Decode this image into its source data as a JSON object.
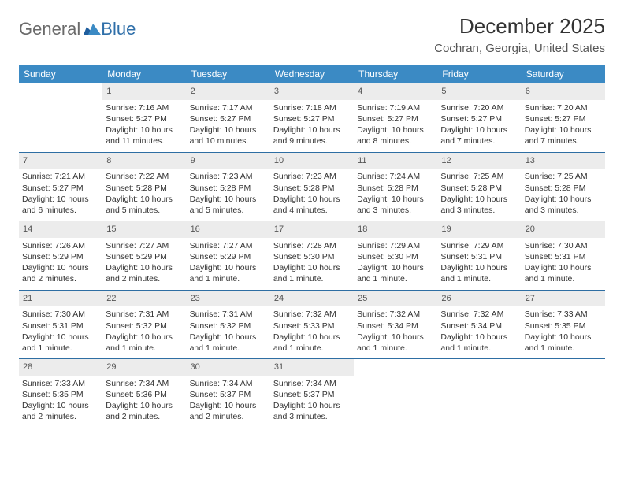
{
  "logo": {
    "word1": "General",
    "word2": "Blue"
  },
  "title": "December 2025",
  "location": "Cochran, Georgia, United States",
  "colors": {
    "header_bg": "#3b8ac4",
    "week_divider": "#2e6ea3",
    "daynum_bg": "#ececec",
    "text": "#333333",
    "logo_gray": "#6a6a6a",
    "logo_blue": "#2f6fa9"
  },
  "weekdays": [
    "Sunday",
    "Monday",
    "Tuesday",
    "Wednesday",
    "Thursday",
    "Friday",
    "Saturday"
  ],
  "weeks": [
    [
      {
        "blank": true
      },
      {
        "d": "1",
        "sr": "Sunrise: 7:16 AM",
        "ss": "Sunset: 5:27 PM",
        "dl1": "Daylight: 10 hours",
        "dl2": "and 11 minutes."
      },
      {
        "d": "2",
        "sr": "Sunrise: 7:17 AM",
        "ss": "Sunset: 5:27 PM",
        "dl1": "Daylight: 10 hours",
        "dl2": "and 10 minutes."
      },
      {
        "d": "3",
        "sr": "Sunrise: 7:18 AM",
        "ss": "Sunset: 5:27 PM",
        "dl1": "Daylight: 10 hours",
        "dl2": "and 9 minutes."
      },
      {
        "d": "4",
        "sr": "Sunrise: 7:19 AM",
        "ss": "Sunset: 5:27 PM",
        "dl1": "Daylight: 10 hours",
        "dl2": "and 8 minutes."
      },
      {
        "d": "5",
        "sr": "Sunrise: 7:20 AM",
        "ss": "Sunset: 5:27 PM",
        "dl1": "Daylight: 10 hours",
        "dl2": "and 7 minutes."
      },
      {
        "d": "6",
        "sr": "Sunrise: 7:20 AM",
        "ss": "Sunset: 5:27 PM",
        "dl1": "Daylight: 10 hours",
        "dl2": "and 7 minutes."
      }
    ],
    [
      {
        "d": "7",
        "sr": "Sunrise: 7:21 AM",
        "ss": "Sunset: 5:27 PM",
        "dl1": "Daylight: 10 hours",
        "dl2": "and 6 minutes."
      },
      {
        "d": "8",
        "sr": "Sunrise: 7:22 AM",
        "ss": "Sunset: 5:28 PM",
        "dl1": "Daylight: 10 hours",
        "dl2": "and 5 minutes."
      },
      {
        "d": "9",
        "sr": "Sunrise: 7:23 AM",
        "ss": "Sunset: 5:28 PM",
        "dl1": "Daylight: 10 hours",
        "dl2": "and 5 minutes."
      },
      {
        "d": "10",
        "sr": "Sunrise: 7:23 AM",
        "ss": "Sunset: 5:28 PM",
        "dl1": "Daylight: 10 hours",
        "dl2": "and 4 minutes."
      },
      {
        "d": "11",
        "sr": "Sunrise: 7:24 AM",
        "ss": "Sunset: 5:28 PM",
        "dl1": "Daylight: 10 hours",
        "dl2": "and 3 minutes."
      },
      {
        "d": "12",
        "sr": "Sunrise: 7:25 AM",
        "ss": "Sunset: 5:28 PM",
        "dl1": "Daylight: 10 hours",
        "dl2": "and 3 minutes."
      },
      {
        "d": "13",
        "sr": "Sunrise: 7:25 AM",
        "ss": "Sunset: 5:28 PM",
        "dl1": "Daylight: 10 hours",
        "dl2": "and 3 minutes."
      }
    ],
    [
      {
        "d": "14",
        "sr": "Sunrise: 7:26 AM",
        "ss": "Sunset: 5:29 PM",
        "dl1": "Daylight: 10 hours",
        "dl2": "and 2 minutes."
      },
      {
        "d": "15",
        "sr": "Sunrise: 7:27 AM",
        "ss": "Sunset: 5:29 PM",
        "dl1": "Daylight: 10 hours",
        "dl2": "and 2 minutes."
      },
      {
        "d": "16",
        "sr": "Sunrise: 7:27 AM",
        "ss": "Sunset: 5:29 PM",
        "dl1": "Daylight: 10 hours",
        "dl2": "and 1 minute."
      },
      {
        "d": "17",
        "sr": "Sunrise: 7:28 AM",
        "ss": "Sunset: 5:30 PM",
        "dl1": "Daylight: 10 hours",
        "dl2": "and 1 minute."
      },
      {
        "d": "18",
        "sr": "Sunrise: 7:29 AM",
        "ss": "Sunset: 5:30 PM",
        "dl1": "Daylight: 10 hours",
        "dl2": "and 1 minute."
      },
      {
        "d": "19",
        "sr": "Sunrise: 7:29 AM",
        "ss": "Sunset: 5:31 PM",
        "dl1": "Daylight: 10 hours",
        "dl2": "and 1 minute."
      },
      {
        "d": "20",
        "sr": "Sunrise: 7:30 AM",
        "ss": "Sunset: 5:31 PM",
        "dl1": "Daylight: 10 hours",
        "dl2": "and 1 minute."
      }
    ],
    [
      {
        "d": "21",
        "sr": "Sunrise: 7:30 AM",
        "ss": "Sunset: 5:31 PM",
        "dl1": "Daylight: 10 hours",
        "dl2": "and 1 minute."
      },
      {
        "d": "22",
        "sr": "Sunrise: 7:31 AM",
        "ss": "Sunset: 5:32 PM",
        "dl1": "Daylight: 10 hours",
        "dl2": "and 1 minute."
      },
      {
        "d": "23",
        "sr": "Sunrise: 7:31 AM",
        "ss": "Sunset: 5:32 PM",
        "dl1": "Daylight: 10 hours",
        "dl2": "and 1 minute."
      },
      {
        "d": "24",
        "sr": "Sunrise: 7:32 AM",
        "ss": "Sunset: 5:33 PM",
        "dl1": "Daylight: 10 hours",
        "dl2": "and 1 minute."
      },
      {
        "d": "25",
        "sr": "Sunrise: 7:32 AM",
        "ss": "Sunset: 5:34 PM",
        "dl1": "Daylight: 10 hours",
        "dl2": "and 1 minute."
      },
      {
        "d": "26",
        "sr": "Sunrise: 7:32 AM",
        "ss": "Sunset: 5:34 PM",
        "dl1": "Daylight: 10 hours",
        "dl2": "and 1 minute."
      },
      {
        "d": "27",
        "sr": "Sunrise: 7:33 AM",
        "ss": "Sunset: 5:35 PM",
        "dl1": "Daylight: 10 hours",
        "dl2": "and 1 minute."
      }
    ],
    [
      {
        "d": "28",
        "sr": "Sunrise: 7:33 AM",
        "ss": "Sunset: 5:35 PM",
        "dl1": "Daylight: 10 hours",
        "dl2": "and 2 minutes."
      },
      {
        "d": "29",
        "sr": "Sunrise: 7:34 AM",
        "ss": "Sunset: 5:36 PM",
        "dl1": "Daylight: 10 hours",
        "dl2": "and 2 minutes."
      },
      {
        "d": "30",
        "sr": "Sunrise: 7:34 AM",
        "ss": "Sunset: 5:37 PM",
        "dl1": "Daylight: 10 hours",
        "dl2": "and 2 minutes."
      },
      {
        "d": "31",
        "sr": "Sunrise: 7:34 AM",
        "ss": "Sunset: 5:37 PM",
        "dl1": "Daylight: 10 hours",
        "dl2": "and 3 minutes."
      },
      {
        "blank": true
      },
      {
        "blank": true
      },
      {
        "blank": true
      }
    ]
  ]
}
